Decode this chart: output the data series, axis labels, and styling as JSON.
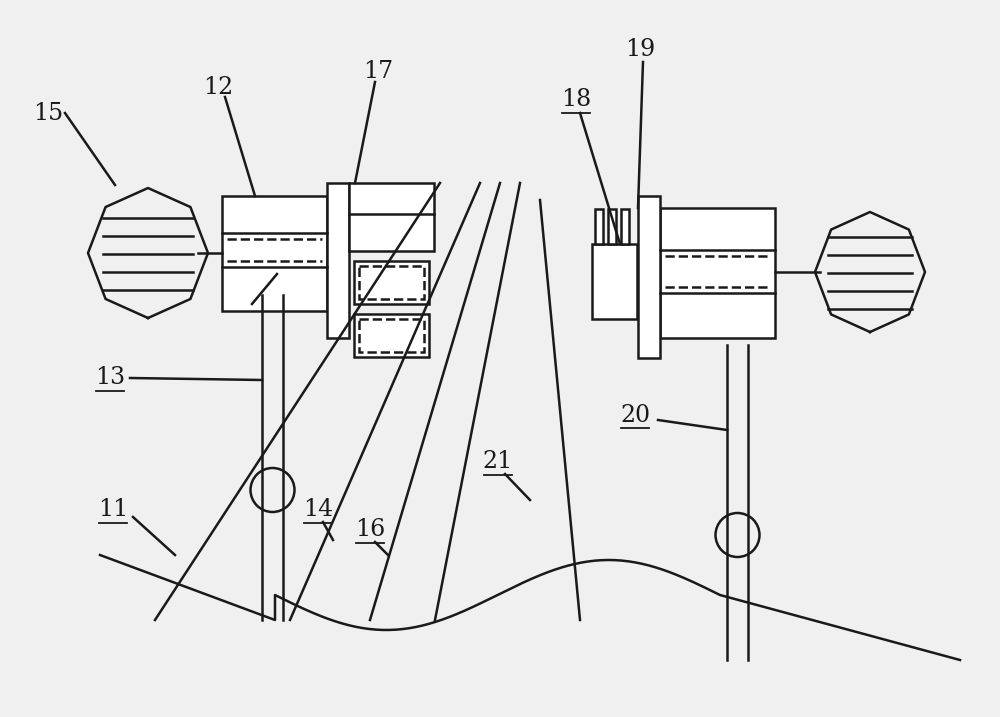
{
  "bg_color": "#f0f0f0",
  "line_color": "#1a1a1a",
  "label_color": "#1a1a1a",
  "label_fontsize": 17,
  "figsize": [
    10.0,
    7.17
  ],
  "dpi": 100
}
